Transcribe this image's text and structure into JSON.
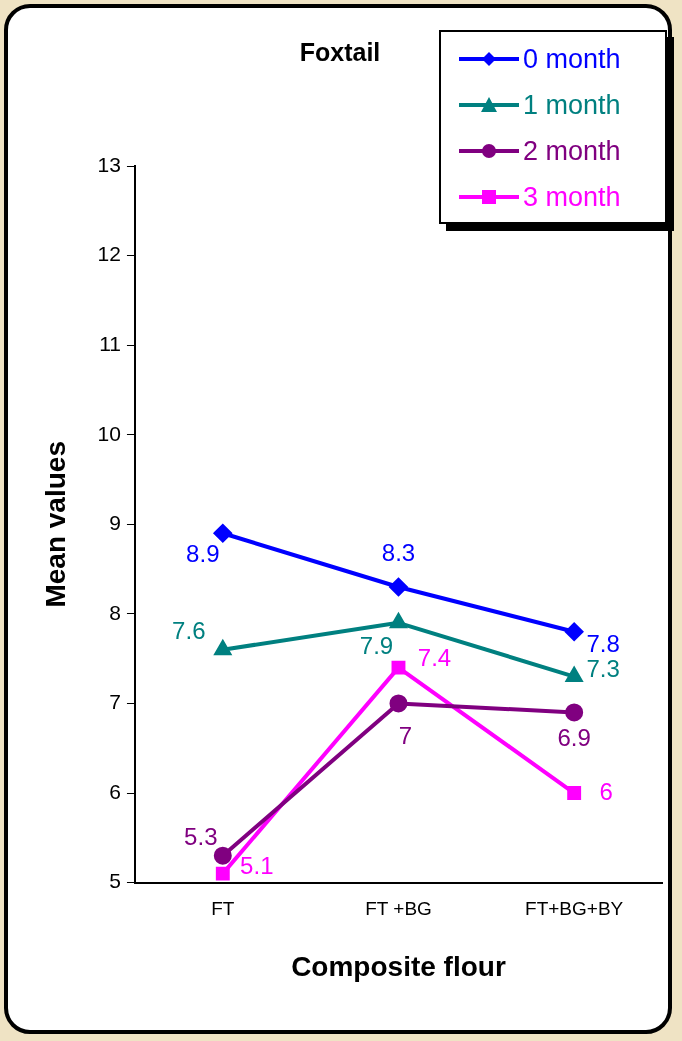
{
  "chart_data": {
    "type": "line",
    "title": "Foxtail",
    "xlabel": "Composite flour",
    "ylabel": "Mean values",
    "categories": [
      "FT",
      "FT +BG",
      "FT+BG+BY"
    ],
    "series": [
      {
        "name": "0 month",
        "color": "#0000ff",
        "marker": "diamond",
        "values": [
          8.9,
          8.3,
          7.8
        ]
      },
      {
        "name": "1 month",
        "color": "#008080",
        "marker": "triangle",
        "values": [
          7.6,
          7.9,
          7.3
        ]
      },
      {
        "name": "2 month",
        "color": "#800080",
        "marker": "circle",
        "values": [
          5.3,
          7,
          6.9
        ]
      },
      {
        "name": "3 month",
        "color": "#ff00ff",
        "marker": "square",
        "values": [
          5.1,
          7.4,
          6
        ]
      }
    ],
    "ylim": [
      5,
      13
    ],
    "yticks": [
      5,
      6,
      7,
      8,
      9,
      10,
      11,
      12,
      13
    ],
    "grid": false,
    "legend": "top right",
    "data_labels": true,
    "line_style": "solid"
  }
}
